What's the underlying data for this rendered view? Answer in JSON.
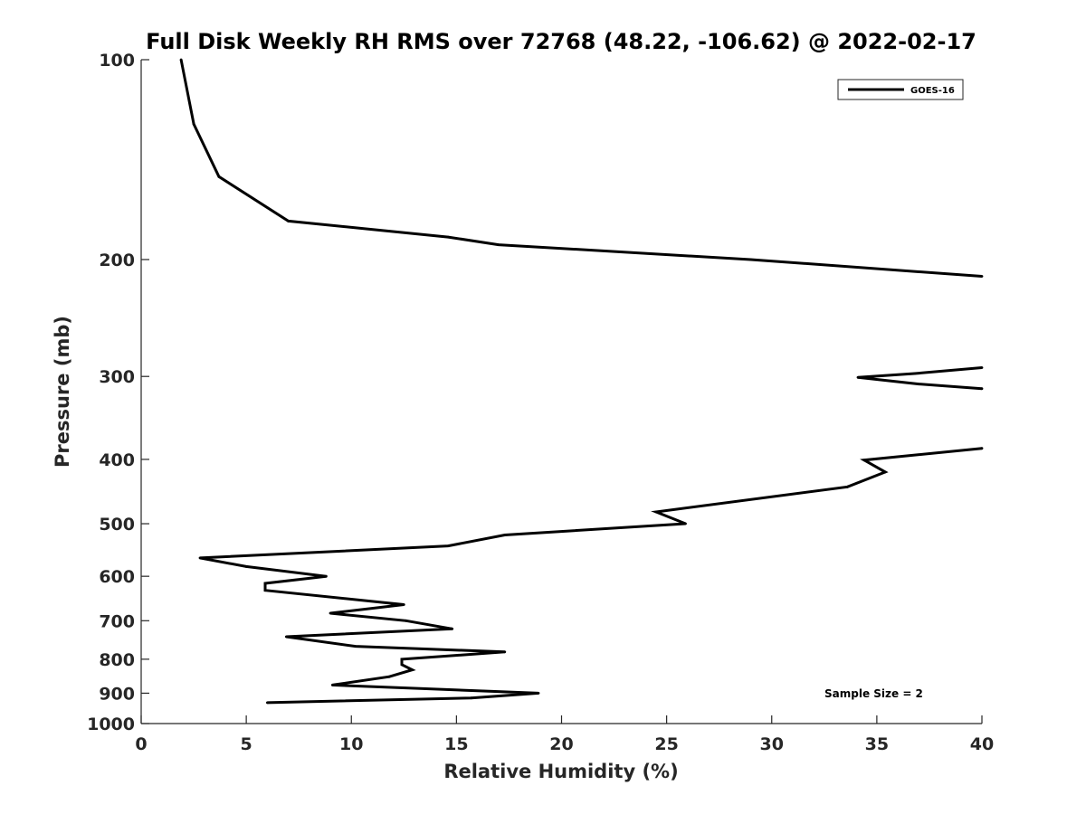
{
  "chart_data": {
    "type": "line",
    "title": "Full Disk Weekly RH RMS over 72768 (48.22, -106.62) @ 2022-02-17",
    "xlabel": "Relative Humidity (%)",
    "ylabel": "Pressure (mb)",
    "xlim": [
      0,
      40
    ],
    "ylim": [
      100,
      1000
    ],
    "yscale": "log",
    "y_reversed": true,
    "x_ticks": [
      "0",
      "5",
      "10",
      "15",
      "20",
      "25",
      "30",
      "35",
      "40"
    ],
    "y_ticks": [
      "100",
      "200",
      "300",
      "400",
      "500",
      "600",
      "700",
      "800",
      "900",
      "1000"
    ],
    "grid": false,
    "legend_position": "top-right",
    "annotation": "Sample Size = 2",
    "series": [
      {
        "name": "GOES-16",
        "color": "#000000",
        "points": [
          [
            1.9,
            100
          ],
          [
            2.5,
            125
          ],
          [
            3.7,
            150
          ],
          [
            7.0,
            175
          ],
          [
            14.6,
            185
          ],
          [
            17.0,
            190
          ],
          [
            29.0,
            200
          ],
          [
            40.0,
            212
          ],
          null,
          [
            40.0,
            291
          ],
          [
            36.8,
            297
          ],
          [
            34.1,
            301
          ],
          [
            37.0,
            308
          ],
          [
            40.0,
            313
          ],
          null,
          [
            40.0,
            385
          ],
          [
            34.4,
            401
          ],
          [
            35.4,
            418
          ],
          [
            33.6,
            440
          ],
          [
            24.5,
            480
          ],
          [
            25.9,
            500
          ],
          [
            17.3,
            520
          ],
          [
            14.6,
            540
          ],
          [
            2.8,
            563
          ],
          [
            5.0,
            580
          ],
          [
            8.8,
            600
          ],
          [
            5.9,
            615
          ],
          [
            5.9,
            630
          ],
          [
            12.5,
            662
          ],
          [
            9.0,
            682
          ],
          [
            12.6,
            700
          ],
          [
            14.8,
            720
          ],
          [
            6.9,
            740
          ],
          [
            10.2,
            765
          ],
          [
            17.3,
            780
          ],
          [
            12.4,
            800
          ],
          [
            12.4,
            815
          ],
          [
            12.9,
            830
          ],
          [
            11.8,
            850
          ],
          [
            9.1,
            875
          ],
          [
            18.9,
            900
          ],
          [
            15.7,
            915
          ],
          [
            6.0,
            930
          ]
        ]
      }
    ]
  }
}
